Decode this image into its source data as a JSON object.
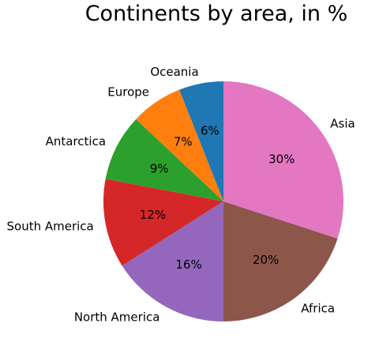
{
  "chart_data": {
    "type": "pie",
    "title": "Continents by area, in %",
    "start_angle_deg": 90,
    "direction": "counterclockwise",
    "slices": [
      {
        "label": "Oceania",
        "value": 6,
        "pct_label": "6%",
        "color": "#1f77b4"
      },
      {
        "label": "Europe",
        "value": 7,
        "pct_label": "7%",
        "color": "#ff7f0e"
      },
      {
        "label": "Antarctica",
        "value": 9,
        "pct_label": "9%",
        "color": "#2ca02c"
      },
      {
        "label": "South America",
        "value": 12,
        "pct_label": "12%",
        "color": "#d62728"
      },
      {
        "label": "North America",
        "value": 16,
        "pct_label": "16%",
        "color": "#9467bd"
      },
      {
        "label": "Africa",
        "value": 20,
        "pct_label": "20%",
        "color": "#8c564b"
      },
      {
        "label": "Asia",
        "value": 30,
        "pct_label": "30%",
        "color": "#e377c2"
      }
    ]
  }
}
